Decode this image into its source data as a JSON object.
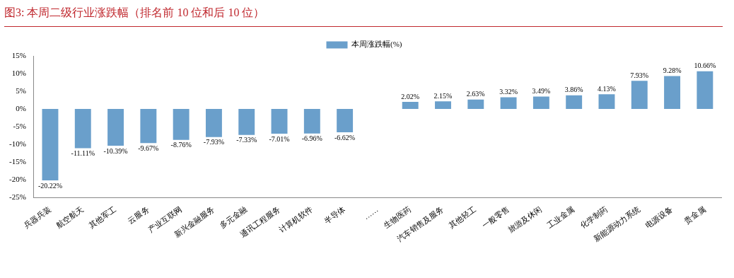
{
  "chart_data": {
    "type": "bar",
    "title": "图3:   本周二级行业涨跌幅（排名前 10 位和后 10 位）",
    "categories": [
      "兵器兵装",
      "航空航天",
      "其他军工",
      "云服务",
      "产业互联网",
      "新兴金融服务",
      "多元金融",
      "通讯工程服务",
      "计算机软件",
      "半导体",
      "……",
      "生物医药",
      "汽车销售及服务",
      "其他轻工",
      "一般零售",
      "旅游及休闲",
      "工业金属",
      "化学制药",
      "新能源动力系统",
      "电源设备",
      "贵金属"
    ],
    "series": [
      {
        "name": "本周涨跌幅(%)",
        "color": "#6a9fcb",
        "values": [
          -20.22,
          -11.11,
          -10.39,
          -9.67,
          -8.76,
          -7.93,
          -7.33,
          -7.01,
          -6.96,
          -6.62,
          null,
          2.02,
          2.15,
          2.63,
          3.32,
          3.49,
          3.86,
          4.13,
          7.93,
          9.28,
          10.66
        ],
        "value_labels": [
          "-20.22%",
          "-11.11%",
          "-10.39%",
          "-9.67%",
          "-8.76%",
          "-7.93%",
          "-7.33%",
          "-7.01%",
          "-6.96%",
          "-6.62%",
          null,
          "2.02%",
          "2.15%",
          "2.63%",
          "3.32%",
          "3.49%",
          "3.86%",
          "4.13%",
          "7.93%",
          "9.28%",
          "10.66%"
        ]
      }
    ],
    "ylim": [
      -25,
      15
    ],
    "yticks": [
      {
        "value": -25,
        "label": "-25%"
      },
      {
        "value": -20,
        "label": "-20%"
      },
      {
        "value": -15,
        "label": "-15%"
      },
      {
        "value": -10,
        "label": "-10%"
      },
      {
        "value": -5,
        "label": "-5%"
      },
      {
        "value": 0,
        "label": "0%"
      },
      {
        "value": 5,
        "label": "5%"
      },
      {
        "value": 10,
        "label": "10%"
      },
      {
        "value": 15,
        "label": "15%"
      }
    ],
    "grid": false,
    "legend": "top"
  }
}
